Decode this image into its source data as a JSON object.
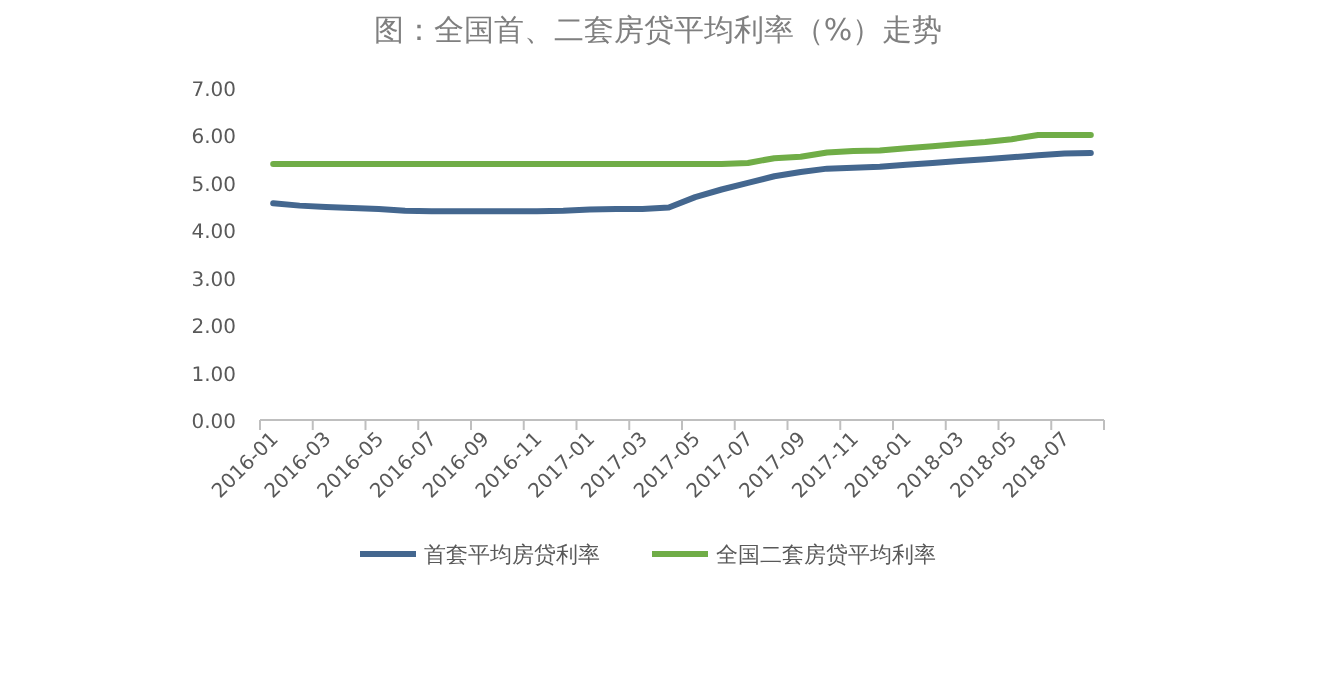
{
  "chart_data": {
    "type": "line",
    "title": "图：全国首、二套房贷平均利率（%）走势",
    "categories": [
      "2016-01",
      null,
      "2016-03",
      null,
      "2016-05",
      null,
      "2016-07",
      null,
      "2016-09",
      null,
      "2016-11",
      null,
      "2017-01",
      null,
      "2017-03",
      null,
      "2017-05",
      null,
      "2017-07",
      null,
      "2017-09",
      null,
      "2017-11",
      null,
      "2018-01",
      null,
      "2018-03",
      null,
      "2018-05",
      null,
      "2018-07",
      null
    ],
    "ylim": [
      0,
      7
    ],
    "yticks": [
      {
        "value": 0,
        "label": "0.00"
      },
      {
        "value": 1,
        "label": "1.00"
      },
      {
        "value": 2,
        "label": "2.00"
      },
      {
        "value": 3,
        "label": "3.00"
      },
      {
        "value": 4,
        "label": "4.00"
      },
      {
        "value": 5,
        "label": "5.00"
      },
      {
        "value": 6,
        "label": "6.00"
      },
      {
        "value": 7,
        "label": "7.00"
      }
    ],
    "legend": "bottom",
    "grid": false,
    "marker": "none",
    "line_style": "solid",
    "series": [
      {
        "name": "首套平均房贷利率",
        "color": "#44678f",
        "values": [
          4.57,
          4.52,
          4.49,
          4.47,
          4.45,
          4.41,
          4.4,
          4.4,
          4.4,
          4.4,
          4.4,
          4.41,
          4.44,
          4.45,
          4.45,
          4.48,
          4.7,
          4.86,
          5.0,
          5.14,
          5.23,
          5.3,
          5.32,
          5.34,
          5.38,
          5.42,
          5.46,
          5.5,
          5.54,
          5.58,
          5.62,
          5.63
        ]
      },
      {
        "name": "全国二套房贷平均利率",
        "color": "#70ad47",
        "values": [
          5.4,
          5.4,
          5.4,
          5.4,
          5.4,
          5.4,
          5.4,
          5.4,
          5.4,
          5.4,
          5.4,
          5.4,
          5.4,
          5.4,
          5.4,
          5.4,
          5.4,
          5.4,
          5.42,
          5.52,
          5.55,
          5.64,
          5.67,
          5.68,
          5.73,
          5.77,
          5.82,
          5.86,
          5.92,
          6.01,
          6.01,
          6.01
        ]
      }
    ]
  }
}
